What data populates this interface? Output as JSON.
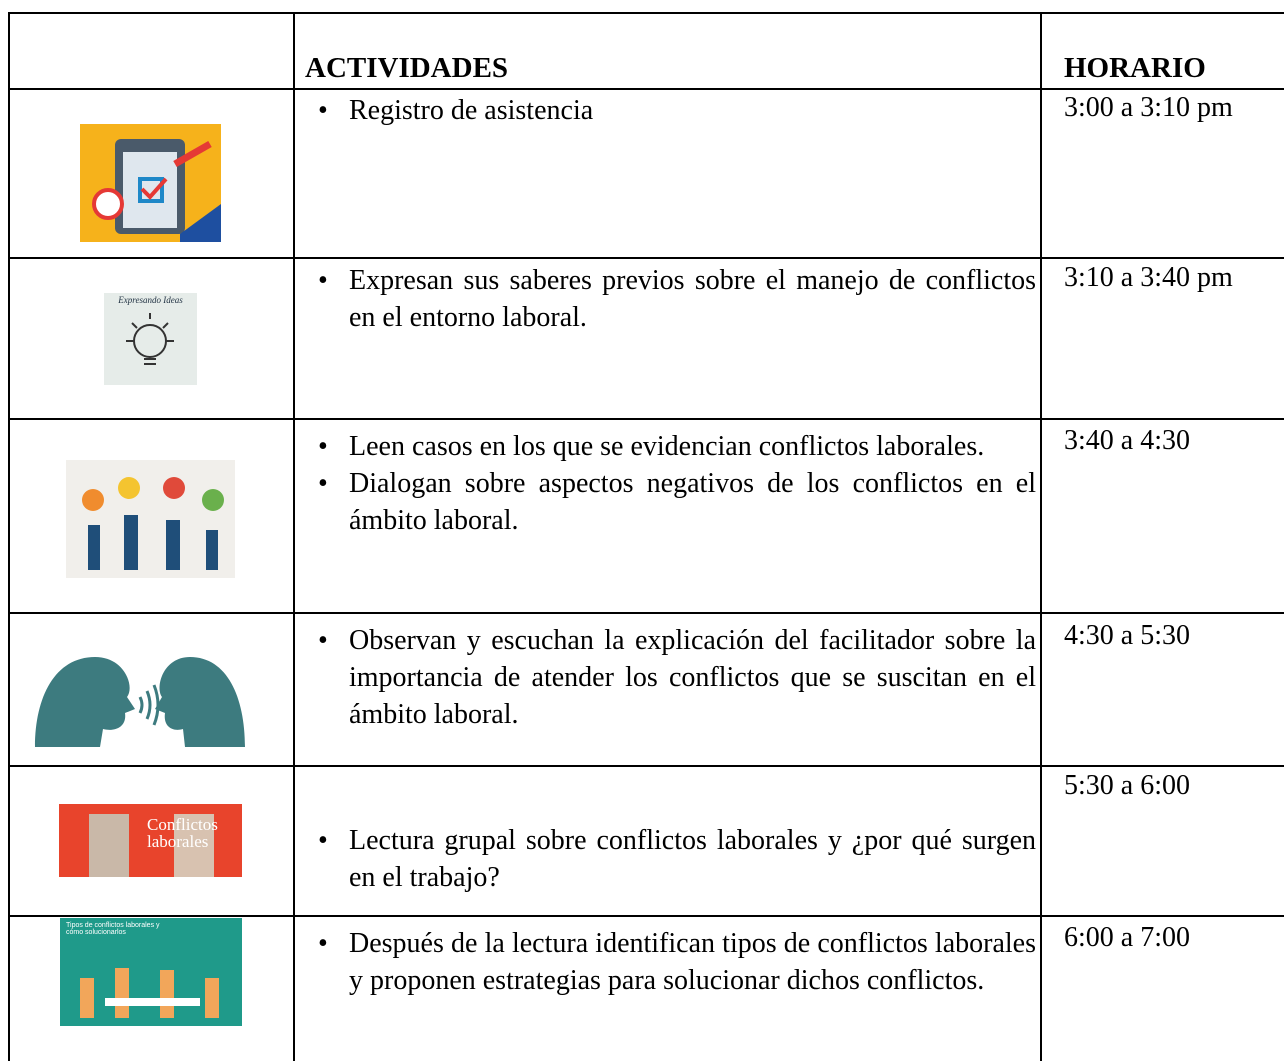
{
  "table": {
    "header": {
      "activities": "ACTIVIDADES",
      "schedule": "HORARIO"
    },
    "rows": [
      {
        "activities": [
          "Registro de asistencia"
        ],
        "schedule": "3:00 a 3:10 pm"
      },
      {
        "image_text": "Expresando Ideas",
        "activities": [
          "Expresan sus saberes previos sobre el manejo de conflictos en el entorno laboral."
        ],
        "schedule": "3:10 a 3:40 pm"
      },
      {
        "activities": [
          "Leen casos en los que se evidencian conflictos laborales.",
          "Dialogan sobre aspectos negativos de los conflictos en el ámbito laboral."
        ],
        "schedule": "3:40 a 4:30"
      },
      {
        "activities": [
          "Observan y escuchan la explicación del facilitador sobre la importancia de atender los conflictos que se suscitan en el ámbito laboral."
        ],
        "schedule": "4:30 a 5:30"
      },
      {
        "image_text": "Conflictos laborales",
        "activities": [
          "Lectura grupal sobre conflictos laborales y ¿por qué surgen en el trabajo?"
        ],
        "schedule": "5:30 a 6:00"
      },
      {
        "image_text": "Tipos de conflictos laborales y cómo solucionarlos",
        "activities": [
          "Después de la lectura identifican tipos de conflictos laborales y proponen estrategias para solucionar dichos conflictos."
        ],
        "schedule": "6:00 a 7:00"
      }
    ]
  }
}
